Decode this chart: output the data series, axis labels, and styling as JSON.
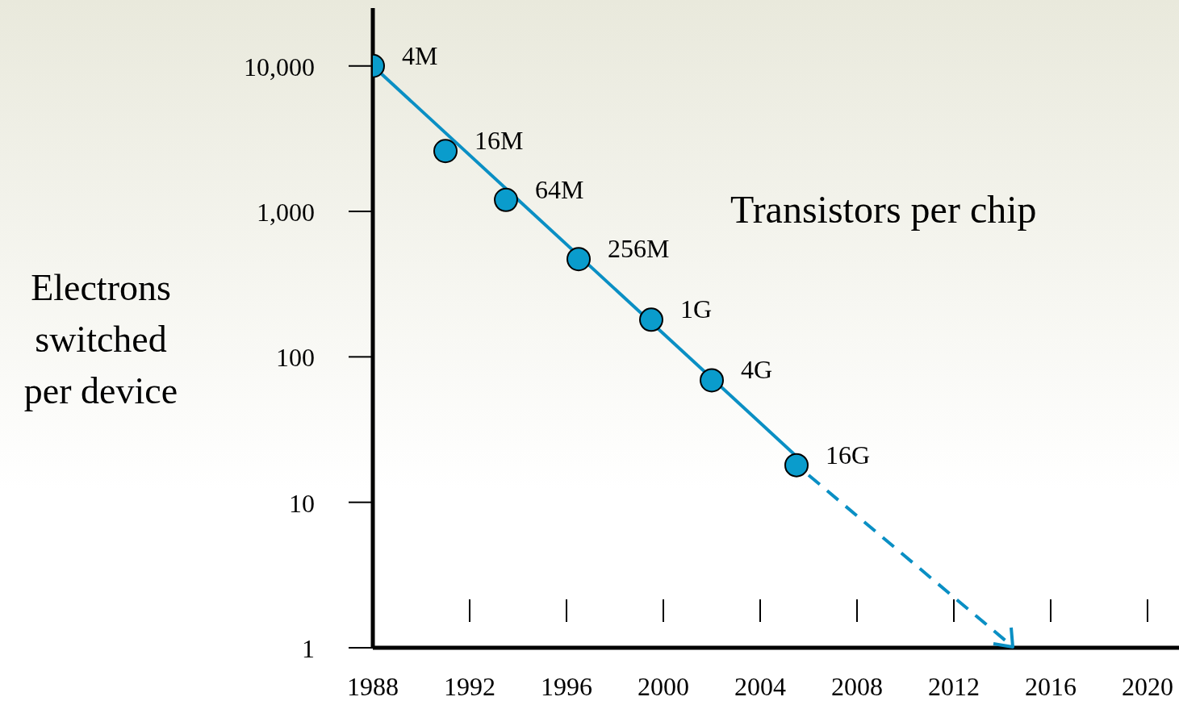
{
  "chart_data": {
    "type": "scatter",
    "ylabel": "Electrons switched per device",
    "log": "y",
    "marker": "circle",
    "grid": false,
    "legend": false,
    "xlim": [
      1988,
      2021.3
    ],
    "xticks": [
      1988,
      1992,
      1996,
      2000,
      2004,
      2008,
      2012,
      2016,
      2020
    ],
    "ylim": [
      1,
      25000
    ],
    "yticks": [
      1,
      10,
      100,
      {
        "value": 1000,
        "label": "1,000"
      },
      {
        "value": 10000,
        "label": "10,000"
      }
    ],
    "series": [
      {
        "type": "line",
        "color": "#0a8fc4",
        "line_style": "solid",
        "marker": "none",
        "x": [
          1988,
          2005.6
        ],
        "values": [
          10000,
          20
        ]
      },
      {
        "color": "#0a9ccc",
        "x": [
          1988,
          1991,
          1993.5,
          1996.5,
          1999.5,
          2002,
          2005.5
        ],
        "values": [
          10000,
          2600,
          1200,
          470,
          180,
          69,
          18
        ]
      }
    ],
    "annotations": [
      "Transistors per chip",
      {
        "text": "4M",
        "x": 1988,
        "y": 10000
      },
      {
        "text": "16M",
        "x": 1991,
        "y": 2600
      },
      {
        "text": "64M",
        "x": 1993.5,
        "y": 1200
      },
      {
        "text": "256M",
        "x": 1996.5,
        "y": 470
      },
      {
        "text": "1G",
        "x": 1999.5,
        "y": 180
      },
      {
        "text": "4G",
        "x": 2002,
        "y": 69
      },
      {
        "text": "16G",
        "x": 2005.5,
        "y": 18
      }
    ]
  }
}
